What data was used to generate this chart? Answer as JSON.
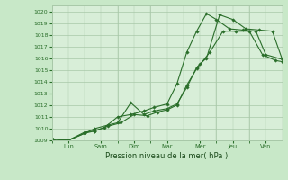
{
  "title": "",
  "xlabel": "Pression niveau de la mer( hPa )",
  "ylabel": "",
  "background_color": "#c8e8c8",
  "plot_background": "#d8eed8",
  "grid_color": "#a8c8a8",
  "line_color": "#2a6e2a",
  "xlim": [
    0,
    7
  ],
  "ylim": [
    1009,
    1020.5
  ],
  "x_tick_positions": [
    0.5,
    1.5,
    2.5,
    3.5,
    4.5,
    5.5,
    6.5
  ],
  "x_labels": [
    "Lun",
    "Sam",
    "Dim",
    "Mar",
    "Mer",
    "Jeu",
    "Ven"
  ],
  "y_ticks": [
    1009,
    1010,
    1011,
    1012,
    1013,
    1014,
    1015,
    1016,
    1017,
    1018,
    1019,
    1020
  ],
  "series1_x": [
    0.05,
    0.5,
    1.0,
    1.3,
    1.7,
    2.1,
    2.5,
    2.9,
    3.2,
    3.5,
    3.8,
    4.1,
    4.4,
    4.8,
    5.2,
    5.6,
    6.0,
    6.4,
    6.8,
    7.0
  ],
  "series1_y": [
    1009.1,
    1009.0,
    1009.7,
    1009.8,
    1010.2,
    1010.5,
    1011.2,
    1011.1,
    1011.4,
    1011.6,
    1012.0,
    1013.7,
    1015.1,
    1016.5,
    1018.3,
    1018.3,
    1018.3,
    1016.3,
    1015.8,
    1015.7
  ],
  "series2_x": [
    0.05,
    0.5,
    1.0,
    1.3,
    1.7,
    2.0,
    2.4,
    2.8,
    3.1,
    3.5,
    3.8,
    4.1,
    4.4,
    4.5,
    4.7,
    5.1,
    5.5,
    5.9,
    6.3,
    6.7,
    7.0
  ],
  "series2_y": [
    1009.1,
    1009.0,
    1009.6,
    1010.0,
    1010.3,
    1010.5,
    1012.2,
    1011.2,
    1011.5,
    1011.7,
    1012.1,
    1013.5,
    1015.2,
    1015.5,
    1016.0,
    1019.7,
    1019.3,
    1018.5,
    1018.4,
    1018.3,
    1015.9
  ],
  "series3_x": [
    0.05,
    0.5,
    1.0,
    1.3,
    1.6,
    2.0,
    2.4,
    2.8,
    3.1,
    3.5,
    3.8,
    4.1,
    4.4,
    4.7,
    5.0,
    5.4,
    5.8,
    6.2,
    6.5,
    7.0
  ],
  "series3_y": [
    1009.1,
    1009.0,
    1009.6,
    1009.8,
    1010.1,
    1011.0,
    1011.2,
    1011.5,
    1011.8,
    1012.1,
    1013.8,
    1016.5,
    1018.3,
    1019.8,
    1019.3,
    1018.5,
    1018.4,
    1018.3,
    1016.3,
    1015.9
  ]
}
